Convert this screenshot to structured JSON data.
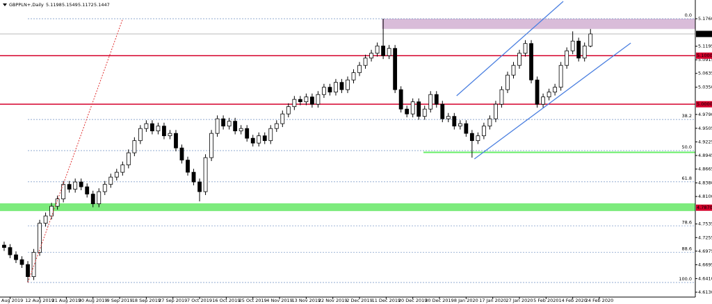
{
  "chart_data": {
    "type": "candlestick",
    "title": "GBPPLN+,Daily",
    "open": [
      4.71,
      4.705,
      4.69,
      4.68,
      4.67,
      4.645,
      4.695,
      4.755,
      4.77,
      4.79,
      4.805,
      4.835,
      4.825,
      4.84,
      4.83,
      4.815,
      4.795,
      4.82,
      4.835,
      4.85,
      4.86,
      4.875,
      4.9,
      4.925,
      4.95,
      4.96,
      4.945,
      4.955,
      4.935,
      4.94,
      4.91,
      4.885,
      4.86,
      4.84,
      4.82,
      4.89,
      4.94,
      4.97,
      4.955,
      4.965,
      4.945,
      4.95,
      4.93,
      4.92,
      4.935,
      4.925,
      4.95,
      4.96,
      4.98,
      4.995,
      5.01,
      5.005,
      5.015,
      5.0,
      5.02,
      5.035,
      5.025,
      5.045,
      5.03,
      5.05,
      5.065,
      5.08,
      5.095,
      5.105,
      5.12,
      5.1,
      5.115,
      5.03,
      4.99,
      4.98,
      5.005,
      4.975,
      4.99,
      5.02,
      5.0,
      4.97,
      4.975,
      4.955,
      4.96,
      4.94,
      4.925,
      4.935,
      4.955,
      4.97,
      5.0,
      5.03,
      5.06,
      5.08,
      5.105,
      5.125,
      5.05,
      5.0,
      5.015,
      5.025,
      5.035,
      5.08,
      5.11,
      5.13,
      5.095,
      5.1198
    ],
    "high": [
      4.717,
      4.712,
      4.697,
      4.687,
      4.677,
      4.702,
      4.762,
      4.777,
      4.797,
      4.812,
      4.842,
      4.842,
      4.847,
      4.847,
      4.837,
      4.822,
      4.827,
      4.842,
      4.857,
      4.867,
      4.882,
      4.907,
      4.932,
      4.957,
      4.967,
      4.967,
      4.962,
      4.962,
      4.947,
      4.947,
      4.917,
      4.892,
      4.867,
      4.847,
      4.897,
      4.947,
      4.977,
      4.977,
      4.972,
      4.972,
      4.957,
      4.957,
      4.937,
      4.942,
      4.942,
      4.957,
      4.967,
      4.987,
      5.002,
      5.017,
      5.017,
      5.022,
      5.022,
      5.027,
      5.042,
      5.042,
      5.052,
      5.052,
      5.057,
      5.072,
      5.087,
      5.102,
      5.112,
      5.127,
      5.176,
      5.122,
      5.122,
      5.037,
      4.997,
      5.012,
      5.012,
      4.997,
      5.027,
      5.027,
      5.007,
      4.982,
      4.982,
      4.967,
      4.967,
      4.947,
      4.942,
      4.962,
      4.977,
      5.007,
      5.037,
      5.067,
      5.087,
      5.112,
      5.132,
      5.132,
      5.057,
      5.022,
      5.032,
      5.042,
      5.087,
      5.117,
      5.15,
      5.137,
      5.127,
      5.1549
    ],
    "low": [
      4.698,
      4.683,
      4.673,
      4.663,
      4.633,
      4.638,
      4.688,
      4.748,
      4.763,
      4.783,
      4.798,
      4.818,
      4.818,
      4.823,
      4.808,
      4.788,
      4.788,
      4.813,
      4.828,
      4.843,
      4.853,
      4.868,
      4.893,
      4.918,
      4.943,
      4.938,
      4.938,
      4.928,
      4.928,
      4.903,
      4.878,
      4.853,
      4.833,
      4.8,
      4.813,
      4.883,
      4.933,
      4.948,
      4.948,
      4.938,
      4.938,
      4.923,
      4.913,
      4.913,
      4.918,
      4.918,
      4.943,
      4.953,
      4.973,
      4.988,
      4.998,
      4.998,
      4.993,
      4.993,
      5.013,
      5.018,
      5.018,
      5.023,
      5.023,
      5.043,
      5.058,
      5.073,
      5.088,
      5.098,
      5.093,
      5.093,
      5.023,
      4.983,
      4.973,
      4.973,
      4.968,
      4.968,
      4.983,
      4.993,
      4.963,
      4.963,
      4.948,
      4.948,
      4.933,
      4.89,
      4.918,
      4.928,
      4.948,
      4.963,
      4.993,
      5.023,
      5.053,
      5.073,
      5.098,
      5.043,
      4.993,
      4.993,
      5.008,
      5.018,
      5.028,
      5.073,
      5.103,
      5.088,
      5.088,
      5.1172
    ],
    "close": [
      4.705,
      4.69,
      4.68,
      4.67,
      4.645,
      4.695,
      4.755,
      4.77,
      4.79,
      4.805,
      4.835,
      4.825,
      4.84,
      4.83,
      4.815,
      4.795,
      4.82,
      4.835,
      4.85,
      4.86,
      4.875,
      4.9,
      4.925,
      4.95,
      4.96,
      4.945,
      4.955,
      4.935,
      4.94,
      4.91,
      4.885,
      4.86,
      4.84,
      4.82,
      4.89,
      4.94,
      4.97,
      4.955,
      4.965,
      4.945,
      4.95,
      4.93,
      4.92,
      4.935,
      4.925,
      4.95,
      4.96,
      4.98,
      4.995,
      5.01,
      5.005,
      5.015,
      5.0,
      5.02,
      5.035,
      5.025,
      5.045,
      5.03,
      5.05,
      5.065,
      5.08,
      5.095,
      5.105,
      5.12,
      5.1,
      5.115,
      5.03,
      4.99,
      4.98,
      5.005,
      4.975,
      4.99,
      5.02,
      5.0,
      4.97,
      4.975,
      4.955,
      4.96,
      4.94,
      4.925,
      4.935,
      4.955,
      4.97,
      5.0,
      5.03,
      5.06,
      5.08,
      5.105,
      5.125,
      5.05,
      5.0,
      5.015,
      5.025,
      5.035,
      5.08,
      5.11,
      5.13,
      5.095,
      5.12,
      5.1447
    ],
    "up_color": "#ffffff",
    "down_color": "#000000",
    "wick_color": "#000000",
    "xlim": [
      -0.7,
      116.7
    ],
    "ylim": [
      4.603,
      5.2146
    ],
    "xticks": [
      {
        "value": 1,
        "label": "2 Aug 2019"
      },
      {
        "value": 6,
        "label": "12 Aug 2019"
      },
      {
        "value": 10.5,
        "label": "21 Aug 2019"
      },
      {
        "value": 15,
        "label": "30 Aug 2019"
      },
      {
        "value": 19.5,
        "label": "9 Sep 2019"
      },
      {
        "value": 24,
        "label": "18 Sep 2019"
      },
      {
        "value": 28.5,
        "label": "27 Sep 2019"
      },
      {
        "value": 33,
        "label": "7 Oct 2019"
      },
      {
        "value": 37.5,
        "label": "16 Oct 2019"
      },
      {
        "value": 42,
        "label": "25 Oct 2019"
      },
      {
        "value": 46.5,
        "label": "4 Nov 2019"
      },
      {
        "value": 51,
        "label": "13 Nov 2019"
      },
      {
        "value": 55.5,
        "label": "22 Nov 2019"
      },
      {
        "value": 60,
        "label": "2 Dec 2019"
      },
      {
        "value": 64.5,
        "label": "11 Dec 2019"
      },
      {
        "value": 69,
        "label": "20 Dec 2019"
      },
      {
        "value": 73.5,
        "label": "30 Dec 2019"
      },
      {
        "value": 78,
        "label": "8 Jan 2020"
      },
      {
        "value": 82.5,
        "label": "17 Jan 2020"
      },
      {
        "value": 87,
        "label": "27 Jan 2020"
      },
      {
        "value": 91.5,
        "label": "5 Feb 2020"
      },
      {
        "value": 96,
        "label": "14 Feb 2020"
      },
      {
        "value": 100.5,
        "label": "24 Feb 2020"
      }
    ],
    "yticks": [
      {
        "value": 5.176,
        "label": "5.1760"
      },
      {
        "value": 5.1195,
        "label": "5.1195"
      },
      {
        "value": 5.0915,
        "label": "5.0915"
      },
      {
        "value": 5.0635,
        "label": "5.0635"
      },
      {
        "value": 5.035,
        "label": "5.0350"
      },
      {
        "value": 4.979,
        "label": "4.9790"
      },
      {
        "value": 4.9505,
        "label": "4.9505"
      },
      {
        "value": 4.9225,
        "label": "4.9225"
      },
      {
        "value": 4.8945,
        "label": "4.8945"
      },
      {
        "value": 4.8665,
        "label": "4.8665"
      },
      {
        "value": 4.838,
        "label": "4.8380"
      },
      {
        "value": 4.81,
        "label": "4.8100"
      },
      {
        "value": 4.7535,
        "label": "4.7535"
      },
      {
        "value": 4.7255,
        "label": "4.7255"
      },
      {
        "value": 4.6975,
        "label": "4.6975"
      },
      {
        "value": 4.6695,
        "label": "4.6695"
      },
      {
        "value": 4.641,
        "label": "4.6410"
      },
      {
        "value": 4.613,
        "label": "4.6130"
      }
    ],
    "levels": [
      {
        "value": 5.1,
        "label": "5.1000"
      },
      {
        "value": 5.0,
        "label": "5.0000"
      }
    ],
    "level_color": "#d5002b",
    "price_line_color": "#b0b0b0",
    "zones": [
      {
        "color": "#d9bcd9",
        "ylim": [
          5.155,
          5.176
        ],
        "x0": 63.8
      },
      {
        "color": "#7deb7d",
        "ylim": [
          4.78,
          4.796
        ],
        "label": {
          "value": 4.787,
          "label": "4.7870"
        }
      }
    ],
    "support_line": {
      "color": "#66ee66",
      "value": 4.901,
      "x0": 70.8
    },
    "fibonacci": {
      "color": "#6a8cc0",
      "x0": 4,
      "levels": [
        {
          "value": 5.176,
          "label": "0.0"
        },
        {
          "value": 4.9686,
          "label": "38.2"
        },
        {
          "value": 4.9045,
          "label": "50.0"
        },
        {
          "value": 4.8404,
          "label": "61.8"
        },
        {
          "value": 4.7492,
          "label": "78.6"
        },
        {
          "value": 4.6949,
          "label": "88.6"
        },
        {
          "value": 4.633,
          "label": "100.0"
        }
      ]
    },
    "trendlines": [
      {
        "color": "#4a7fe0",
        "dash": false,
        "x": [
          76.4,
          94.4
        ],
        "y": [
          5.0174,
          5.2117
        ]
      },
      {
        "color": "#4a7fe0",
        "dash": false,
        "x": [
          79.4,
          105.8
        ],
        "y": [
          4.8874,
          5.126
        ]
      },
      {
        "color": "#e03030",
        "dash": true,
        "x": [
          4,
          20
        ],
        "y": [
          4.633,
          5.175
        ]
      }
    ]
  }
}
